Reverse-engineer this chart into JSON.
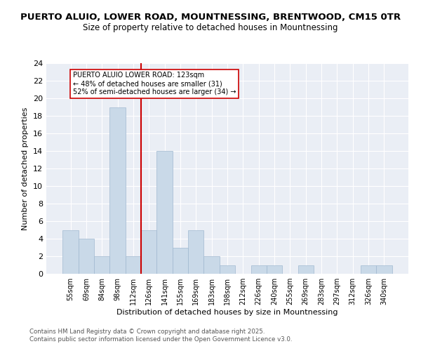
{
  "title_line1": "PUERTO ALUIO, LOWER ROAD, MOUNTNESSING, BRENTWOOD, CM15 0TR",
  "title_line2": "Size of property relative to detached houses in Mountnessing",
  "xlabel": "Distribution of detached houses by size in Mountnessing",
  "ylabel": "Number of detached properties",
  "categories": [
    "55sqm",
    "69sqm",
    "84sqm",
    "98sqm",
    "112sqm",
    "126sqm",
    "141sqm",
    "155sqm",
    "169sqm",
    "183sqm",
    "198sqm",
    "212sqm",
    "226sqm",
    "240sqm",
    "255sqm",
    "269sqm",
    "283sqm",
    "297sqm",
    "312sqm",
    "326sqm",
    "340sqm"
  ],
  "values": [
    5,
    4,
    2,
    19,
    2,
    5,
    14,
    3,
    5,
    2,
    1,
    0,
    1,
    1,
    0,
    1,
    0,
    0,
    0,
    1,
    1
  ],
  "bar_color": "#c9d9e8",
  "bar_edge_color": "#a0b8d0",
  "vline_idx": 5,
  "vline_color": "#cc0000",
  "annotation_text": "PUERTO ALUIO LOWER ROAD: 123sqm\n← 48% of detached houses are smaller (31)\n52% of semi-detached houses are larger (34) →",
  "annotation_box_color": "#ffffff",
  "annotation_box_edge": "#cc0000",
  "ylim": [
    0,
    24
  ],
  "yticks": [
    0,
    2,
    4,
    6,
    8,
    10,
    12,
    14,
    16,
    18,
    20,
    22,
    24
  ],
  "bg_color": "#eaeef5",
  "footer_text": "Contains HM Land Registry data © Crown copyright and database right 2025.\nContains public sector information licensed under the Open Government Licence v3.0.",
  "title_fontsize": 9.5,
  "subtitle_fontsize": 8.5
}
